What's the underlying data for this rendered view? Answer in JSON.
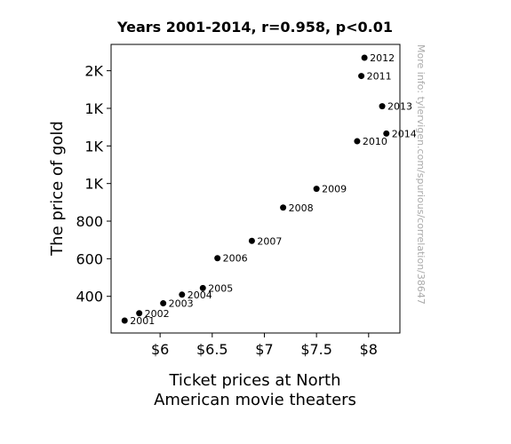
{
  "chart_data": {
    "type": "scatter",
    "title": "Years 2001-2014, r=0.958, p<0.01",
    "xlabel_lines": [
      "Ticket prices at North",
      "American movie theaters"
    ],
    "ylabel": "The price of gold",
    "xlim": [
      5.53,
      8.3
    ],
    "ylim": [
      205,
      1740
    ],
    "x_ticks": [
      {
        "value": 6.0,
        "label": "$6"
      },
      {
        "value": 6.5,
        "label": "$6.5"
      },
      {
        "value": 7.0,
        "label": "$7"
      },
      {
        "value": 7.5,
        "label": "$7.5"
      },
      {
        "value": 8.0,
        "label": "$8"
      }
    ],
    "y_ticks": [
      {
        "value": 400,
        "label": "400"
      },
      {
        "value": 600,
        "label": "600"
      },
      {
        "value": 800,
        "label": "800"
      },
      {
        "value": 1000,
        "label": "1K"
      },
      {
        "value": 1200,
        "label": "1K"
      },
      {
        "value": 1400,
        "label": "1K"
      },
      {
        "value": 1600,
        "label": "2K"
      }
    ],
    "points": [
      {
        "x": 5.66,
        "y": 271,
        "label": "2001"
      },
      {
        "x": 5.8,
        "y": 310,
        "label": "2002"
      },
      {
        "x": 6.03,
        "y": 363,
        "label": "2003"
      },
      {
        "x": 6.21,
        "y": 409,
        "label": "2004"
      },
      {
        "x": 6.41,
        "y": 444,
        "label": "2005"
      },
      {
        "x": 6.55,
        "y": 603,
        "label": "2006"
      },
      {
        "x": 6.88,
        "y": 695,
        "label": "2007"
      },
      {
        "x": 7.18,
        "y": 872,
        "label": "2008"
      },
      {
        "x": 7.5,
        "y": 972,
        "label": "2009"
      },
      {
        "x": 7.89,
        "y": 1225,
        "label": "2010"
      },
      {
        "x": 7.93,
        "y": 1572,
        "label": "2011"
      },
      {
        "x": 7.96,
        "y": 1669,
        "label": "2012"
      },
      {
        "x": 8.13,
        "y": 1411,
        "label": "2013"
      },
      {
        "x": 8.17,
        "y": 1266,
        "label": "2014"
      }
    ],
    "grid": false,
    "marker_color": "#000000"
  },
  "watermark": "More info: tylervigen.com/spurious/correlation/38647"
}
